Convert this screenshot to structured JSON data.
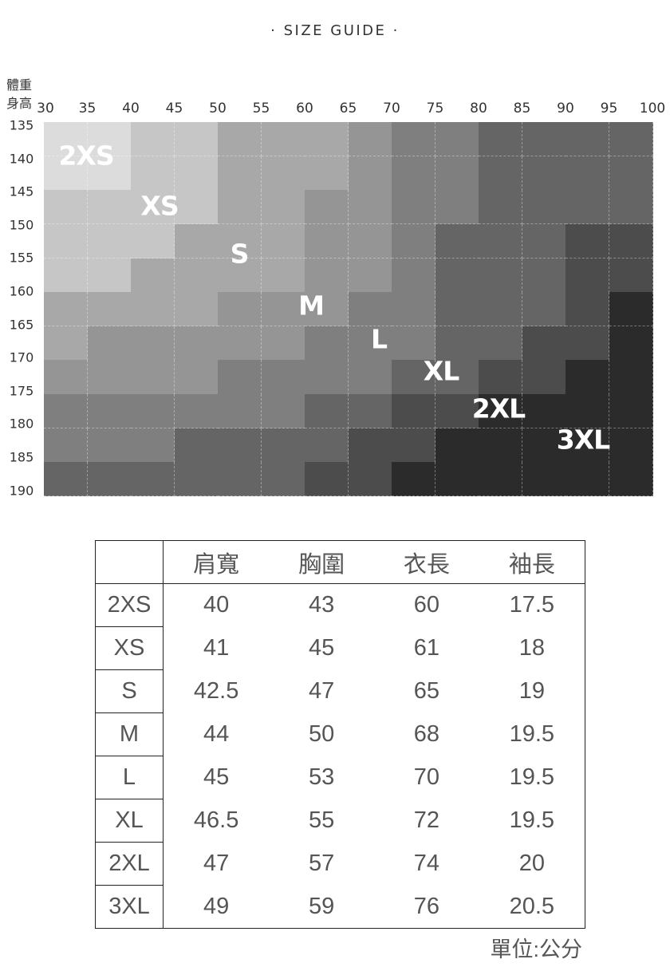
{
  "title": "· SIZE GUIDE ·",
  "chart_data": {
    "type": "heatmap",
    "x_axis_name": "體重",
    "y_axis_name": "身高",
    "x_ticks": [
      "30",
      "35",
      "40",
      "45",
      "50",
      "55",
      "60",
      "65",
      "70",
      "75",
      "80",
      "85",
      "90",
      "95",
      "100"
    ],
    "y_ticks": [
      "135",
      "140",
      "145",
      "150",
      "155",
      "160",
      "165",
      "170",
      "175",
      "180",
      "185",
      "190"
    ],
    "sizes": [
      "2XS",
      "XS",
      "S",
      "M",
      "L",
      "XL",
      "2XL",
      "3XL"
    ],
    "size_colors": {
      "2XS": "#dcdcdc",
      "XS": "#c6c6c6",
      "S": "#a8a8a8",
      "M": "#959595",
      "L": "#7f7f7f",
      "XL": "#656565",
      "2XL": "#4c4c4c",
      "3XL": "#2b2b2b"
    },
    "values": [
      [
        "2XS",
        "2XS",
        "XS",
        "XS",
        "S",
        "S",
        "S",
        "M",
        "L",
        "L",
        "XL",
        "XL",
        "XL",
        "XL"
      ],
      [
        "2XS",
        "2XS",
        "XS",
        "XS",
        "S",
        "S",
        "S",
        "M",
        "L",
        "L",
        "XL",
        "XL",
        "XL",
        "XL"
      ],
      [
        "XS",
        "XS",
        "XS",
        "XS",
        "S",
        "S",
        "M",
        "M",
        "L",
        "L",
        "XL",
        "XL",
        "XL",
        "XL"
      ],
      [
        "XS",
        "XS",
        "XS",
        "S",
        "S",
        "S",
        "M",
        "M",
        "L",
        "XL",
        "XL",
        "XL",
        "2XL",
        "2XL"
      ],
      [
        "XS",
        "XS",
        "S",
        "S",
        "S",
        "S",
        "M",
        "M",
        "L",
        "XL",
        "XL",
        "XL",
        "2XL",
        "2XL"
      ],
      [
        "S",
        "S",
        "S",
        "S",
        "M",
        "M",
        "M",
        "L",
        "L",
        "XL",
        "XL",
        "XL",
        "2XL",
        "3XL"
      ],
      [
        "S",
        "M",
        "M",
        "M",
        "M",
        "M",
        "L",
        "L",
        "L",
        "XL",
        "XL",
        "2XL",
        "2XL",
        "3XL"
      ],
      [
        "M",
        "M",
        "M",
        "M",
        "L",
        "L",
        "L",
        "L",
        "XL",
        "XL",
        "2XL",
        "2XL",
        "3XL",
        "3XL"
      ],
      [
        "L",
        "L",
        "L",
        "L",
        "L",
        "L",
        "XL",
        "XL",
        "2XL",
        "2XL",
        "3XL",
        "3XL",
        "3XL",
        "3XL"
      ],
      [
        "L",
        "L",
        "L",
        "XL",
        "XL",
        "XL",
        "XL",
        "2XL",
        "2XL",
        "3XL",
        "3XL",
        "3XL",
        "3XL",
        "3XL"
      ],
      [
        "XL",
        "XL",
        "XL",
        "XL",
        "XL",
        "XL",
        "2XL",
        "2XL",
        "3XL",
        "3XL",
        "3XL",
        "3XL",
        "3XL",
        "3XL"
      ]
    ],
    "grid": true
  },
  "table": {
    "headers": [
      "",
      "肩寬",
      "胸圍",
      "衣長",
      "袖長"
    ],
    "rows": [
      [
        "2XS",
        "40",
        "43",
        "60",
        "17.5"
      ],
      [
        "XS",
        "41",
        "45",
        "61",
        "18"
      ],
      [
        "S",
        "42.5",
        "47",
        "65",
        "19"
      ],
      [
        "M",
        "44",
        "50",
        "68",
        "19.5"
      ],
      [
        "L",
        "45",
        "53",
        "70",
        "19.5"
      ],
      [
        "XL",
        "46.5",
        "55",
        "72",
        "19.5"
      ],
      [
        "2XL",
        "47",
        "57",
        "74",
        "20"
      ],
      [
        "3XL",
        "49",
        "59",
        "76",
        "20.5"
      ]
    ],
    "unit": "單位:公分"
  }
}
